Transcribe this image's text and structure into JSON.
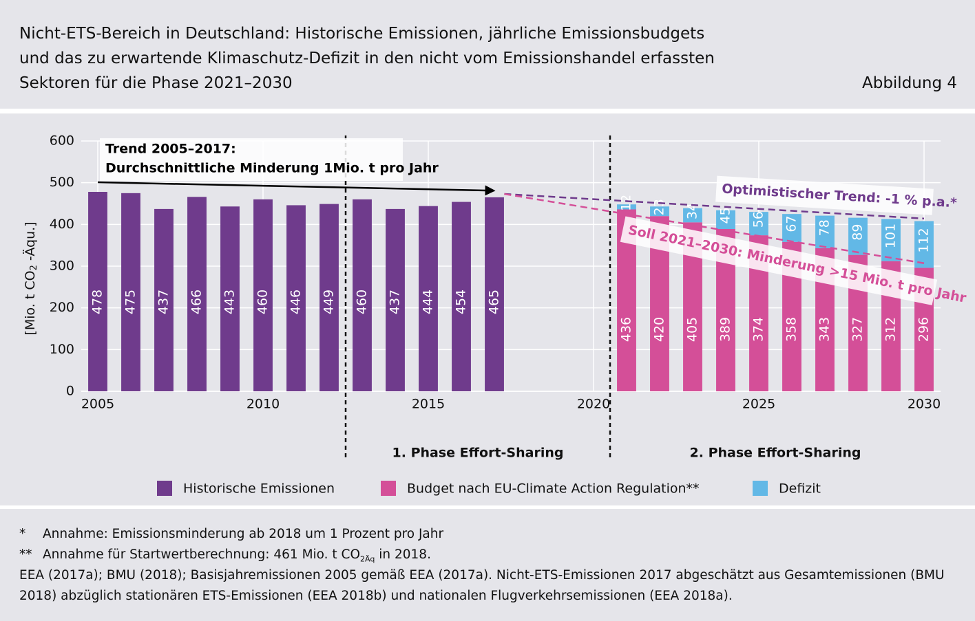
{
  "header": {
    "title_lines": [
      "Nicht-ETS-Bereich in Deutschland: Historische Emissionen, jährliche Emissionsbudgets",
      "und das zu erwartende Klimaschutz-Defizit in den nicht vom Emissionshandel erfassten",
      "Sektoren für die Phase 2021–2030"
    ],
    "figure_label": "Abbildung 4"
  },
  "chart_data": {
    "type": "bar",
    "stacked": true,
    "x": [
      2005,
      2006,
      2007,
      2008,
      2009,
      2010,
      2011,
      2012,
      2013,
      2014,
      2015,
      2016,
      2017,
      2018,
      2019,
      2020,
      2021,
      2022,
      2023,
      2024,
      2025,
      2026,
      2027,
      2028,
      2029,
      2030
    ],
    "xlim": [
      2004.5,
      2030.5
    ],
    "xticks": [
      2005,
      2010,
      2015,
      2020,
      2025,
      2030
    ],
    "ylim": [
      0,
      600
    ],
    "yticks": [
      0,
      100,
      200,
      300,
      400,
      500,
      600
    ],
    "grid": true,
    "y_label_parts": [
      "[Mio. t CO",
      "2",
      " -Äqu.]"
    ],
    "series": [
      {
        "name": "Historische Emissionen",
        "color": "#6f3b8c",
        "values": [
          478,
          475,
          437,
          466,
          443,
          460,
          446,
          449,
          460,
          437,
          444,
          454,
          465,
          null,
          null,
          null,
          null,
          null,
          null,
          null,
          null,
          null,
          null,
          null,
          null,
          null
        ]
      },
      {
        "name": "Budget nach EU-Climate Action Regulation**",
        "color": "#d44f98",
        "values": [
          null,
          null,
          null,
          null,
          null,
          null,
          null,
          null,
          null,
          null,
          null,
          null,
          null,
          null,
          null,
          null,
          436,
          420,
          405,
          389,
          374,
          358,
          343,
          327,
          312,
          296
        ]
      },
      {
        "name": "Defizit",
        "color": "#62b8e6",
        "values": [
          null,
          null,
          null,
          null,
          null,
          null,
          null,
          null,
          null,
          null,
          null,
          null,
          null,
          null,
          null,
          null,
          12,
          23,
          34,
          45,
          56,
          67,
          78,
          89,
          101,
          112
        ]
      }
    ],
    "trend_lines": [
      {
        "label_lines": [
          "Trend 2005–2017:",
          "Durchschnittliche Minderung 1Mio. t pro Jahr"
        ],
        "color": "#000000",
        "dashed": false,
        "x": [
          2005,
          2017
        ],
        "y": [
          501,
          481
        ]
      },
      {
        "label_lines": [
          "Optimistischer Trend: -1 % p.a.*"
        ],
        "color": "#6f3b8c",
        "dashed": true,
        "x": [
          2017.3,
          2030
        ],
        "y": [
          473,
          414
        ]
      },
      {
        "label_lines": [
          "Soll 2021–2030: Minderung >15 Mio. t pro Jahr"
        ],
        "color": "#d44f98",
        "dashed": true,
        "x": [
          2017.3,
          2030
        ],
        "y": [
          473,
          307
        ]
      }
    ],
    "phases": [
      {
        "label": "1. Phase Effort-Sharing",
        "start": 2012.5,
        "end": 2020.5
      },
      {
        "label": "2. Phase Effort-Sharing",
        "start": 2020.5,
        "end": 2030.5
      }
    ]
  },
  "footer": {
    "notes": [
      {
        "marker": "*",
        "parts": [
          "Annahme: Emissionsminderung ab 2018 um 1 Prozent pro Jahr"
        ]
      },
      {
        "marker": "**",
        "parts": [
          "Annahme für Startwertberechnung: 461 Mio. t CO",
          "2Äq",
          " in 2018."
        ]
      }
    ],
    "source_lines": [
      "EEA (2017a); BMU (2018); Basisjahremissionen 2005 gemäß EEA (2017a). Nicht-ETS-Emissionen 2017 abgeschätzt aus Gesamtemissionen (BMU",
      "2018) abzüglich stationären ETS-Emissionen (EEA 2018b) und nationalen Flugverkehrsemissionen (EEA 2018a)."
    ]
  }
}
